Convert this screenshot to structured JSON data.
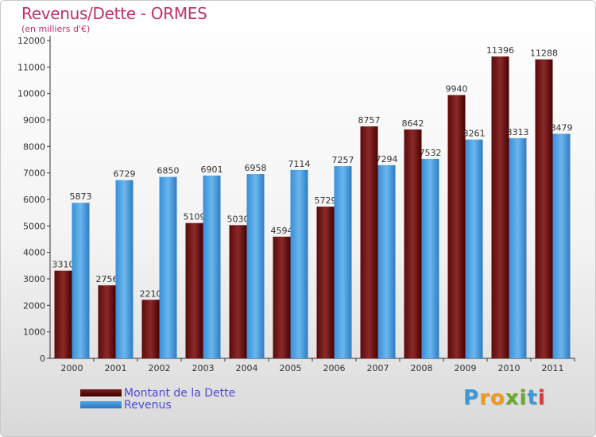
{
  "title": "Revenus/Dette - ORMES",
  "subtitle": "(en milliers d'€)",
  "colors": {
    "debt": "#7a1e1e",
    "revenue": "#4ea4e4",
    "title": "#c0306a",
    "legend_text": "#4a4ad8"
  },
  "logo": {
    "letters": [
      "P",
      "r",
      "o",
      "x",
      "i",
      "t",
      "i"
    ],
    "colors": [
      "#3a9ad9",
      "#f29a1d",
      "#f29a1d",
      "#6aa82e",
      "#6aa82e",
      "#3a9ad9",
      "#d93a3a"
    ]
  },
  "legend": [
    {
      "label": "Montant de la Dette",
      "color": "#7a1e1e"
    },
    {
      "label": "Revenus",
      "color": "#4ea4e4"
    }
  ],
  "chart_data": {
    "type": "bar",
    "categories": [
      "2000",
      "2001",
      "2002",
      "2003",
      "2004",
      "2005",
      "2006",
      "2007",
      "2008",
      "2009",
      "2010",
      "2011"
    ],
    "series": [
      {
        "name": "Montant de la Dette",
        "values": [
          3310,
          2756,
          2210,
          5109,
          5030,
          4594,
          5729,
          8757,
          8642,
          9940,
          11396,
          11288
        ]
      },
      {
        "name": "Revenus",
        "values": [
          5873,
          6729,
          6850,
          6901,
          6958,
          7114,
          7257,
          7294,
          7532,
          8261,
          8313,
          8479
        ]
      }
    ],
    "y_ticks": [
      0,
      1000,
      2000,
      3000,
      4000,
      5000,
      6000,
      7000,
      8000,
      9000,
      10000,
      11000,
      12000
    ],
    "ylim": [
      0,
      12000
    ],
    "grid": false,
    "legend_position": "bottom-left"
  }
}
